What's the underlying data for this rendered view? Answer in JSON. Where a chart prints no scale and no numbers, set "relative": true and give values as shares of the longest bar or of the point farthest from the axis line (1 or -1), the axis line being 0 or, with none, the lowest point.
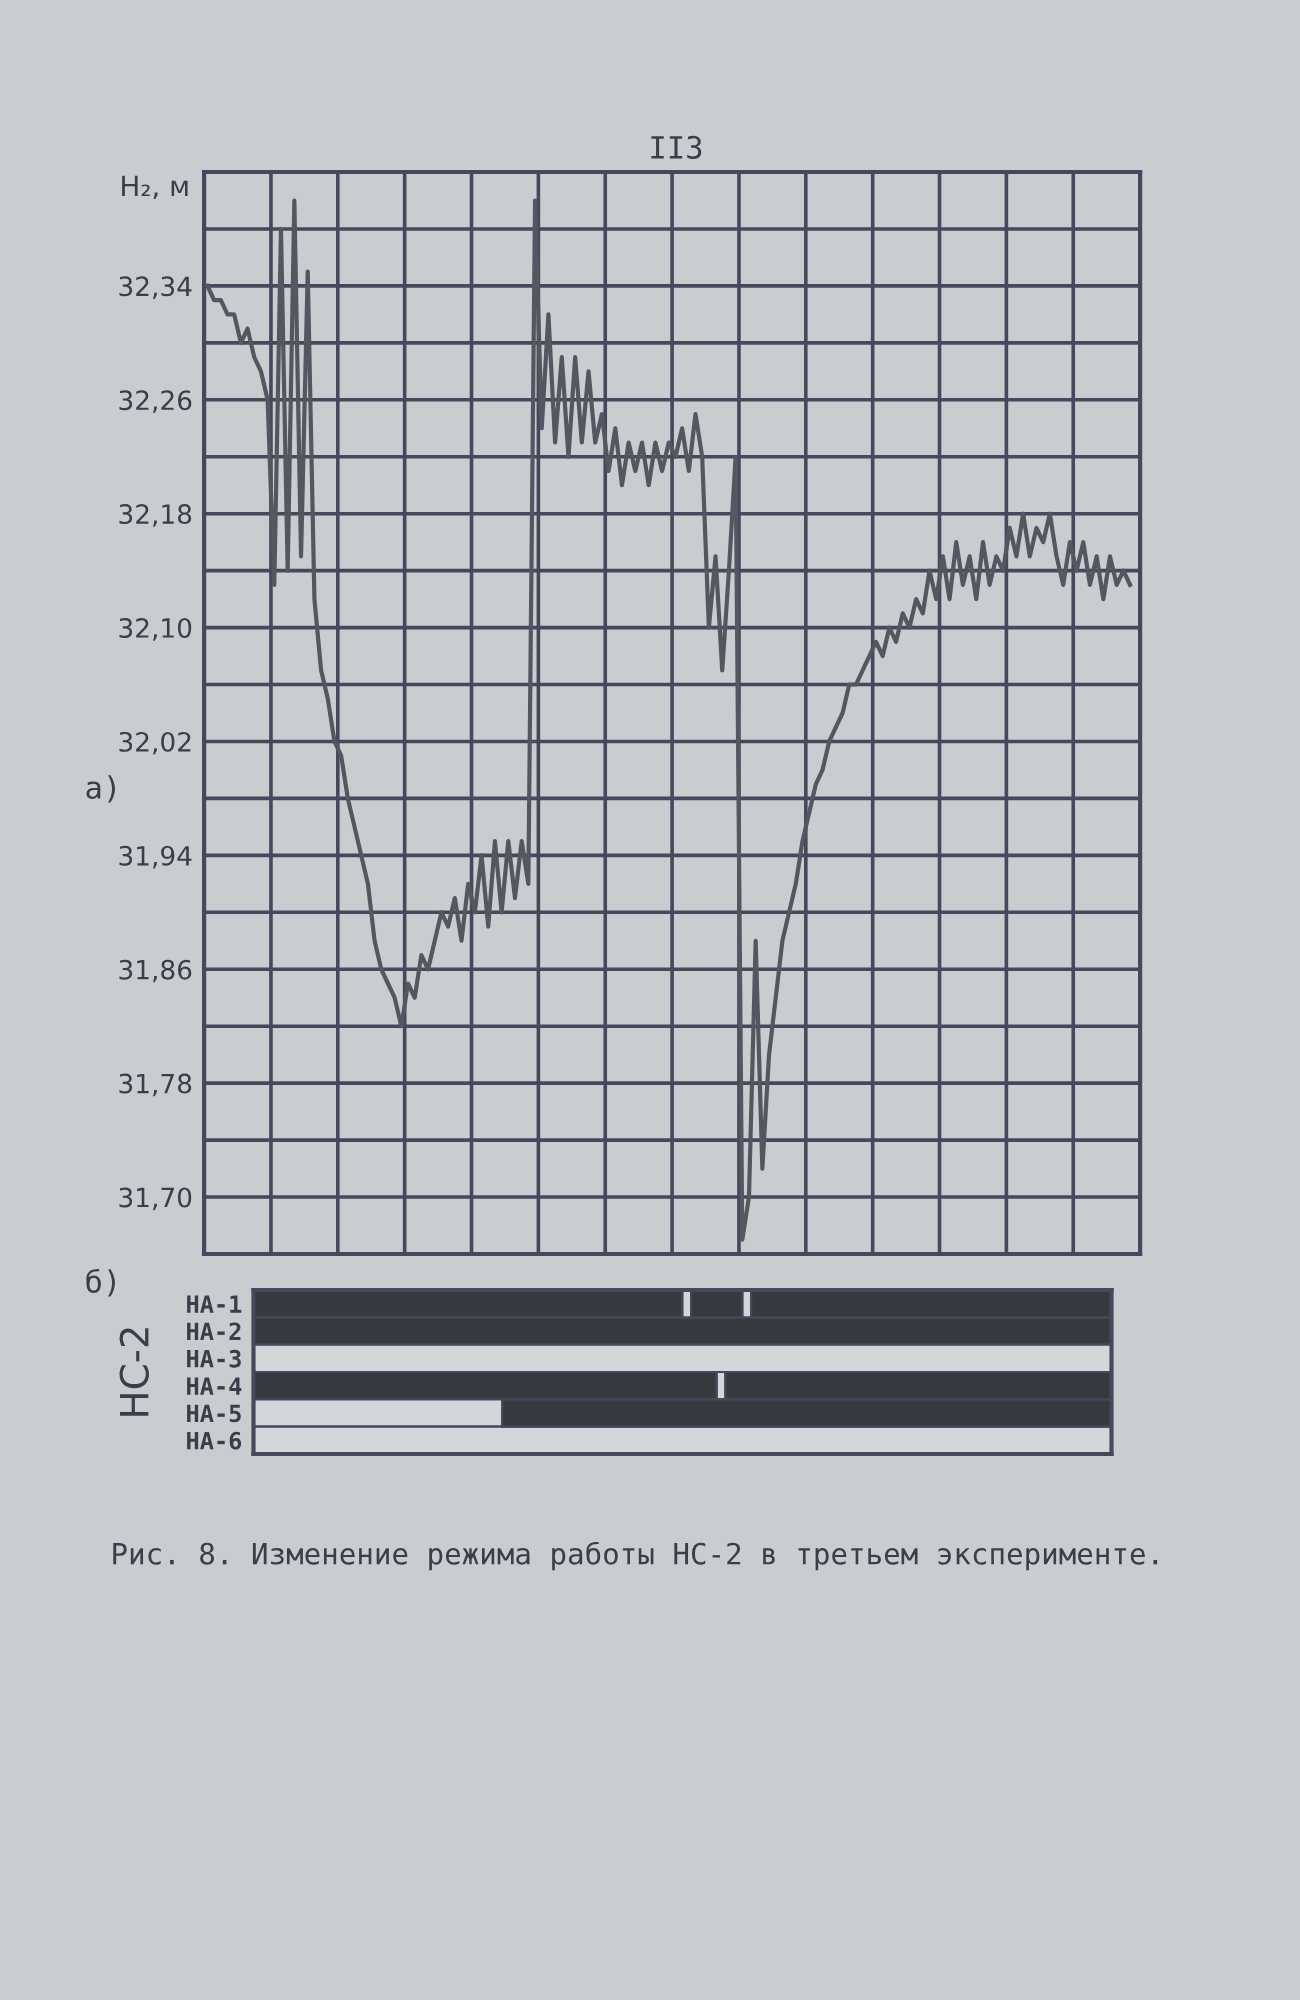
{
  "chart_data": [
    {
      "type": "line",
      "ylabel": "H₂, м",
      "annotations": [
        "II3",
        "а)"
      ],
      "categories": [
        null,
        null,
        null,
        null,
        null,
        null,
        null,
        null,
        null,
        null,
        null,
        null,
        null,
        null,
        null,
        null,
        null,
        null,
        null,
        null,
        null,
        null,
        null,
        null,
        null,
        null,
        null,
        null,
        null,
        null,
        null,
        null,
        null,
        null,
        null,
        null,
        null,
        null,
        null,
        null,
        null,
        null,
        null,
        null,
        null,
        null,
        null,
        null,
        null,
        null,
        null,
        null,
        null,
        null,
        null,
        null,
        null,
        null,
        null,
        null,
        null,
        null,
        null,
        null,
        null,
        null,
        null,
        null,
        null,
        null,
        null,
        null,
        null,
        null,
        null,
        null,
        null,
        null,
        null,
        null,
        null,
        null,
        null,
        null,
        null,
        null,
        null,
        null,
        null,
        null,
        null,
        null,
        null,
        null,
        null,
        null,
        null,
        null,
        null,
        null,
        null,
        null,
        null,
        null,
        null,
        null,
        null,
        null,
        null,
        null,
        null,
        null,
        null,
        null,
        null,
        null,
        null,
        null,
        null,
        null,
        null,
        null,
        null,
        null,
        null,
        null,
        null,
        null,
        null,
        null,
        null,
        null,
        null,
        null,
        null,
        null,
        null,
        null,
        null,
        null
      ],
      "series": [
        {
          "color": "#55565f",
          "values": [
            32.34,
            32.33,
            32.33,
            32.32,
            32.32,
            32.3,
            32.31,
            32.29,
            32.28,
            32.26,
            32.13,
            32.38,
            32.14,
            32.4,
            32.15,
            32.35,
            32.12,
            32.07,
            32.05,
            32.02,
            32.01,
            31.98,
            31.96,
            31.94,
            31.92,
            31.88,
            31.86,
            31.85,
            31.84,
            31.82,
            31.85,
            31.84,
            31.87,
            31.86,
            31.88,
            31.9,
            31.89,
            31.91,
            31.88,
            31.92,
            31.9,
            31.94,
            31.89,
            31.95,
            31.9,
            31.95,
            31.91,
            31.95,
            31.92,
            32.4,
            32.24,
            32.32,
            32.23,
            32.29,
            32.22,
            32.29,
            32.23,
            32.28,
            32.23,
            32.25,
            32.21,
            32.24,
            32.2,
            32.23,
            32.21,
            32.23,
            32.2,
            32.23,
            32.21,
            32.23,
            32.22,
            32.24,
            32.21,
            32.25,
            32.22,
            32.1,
            32.15,
            32.07,
            32.14,
            32.22,
            31.67,
            31.7,
            31.88,
            31.72,
            31.8,
            31.84,
            31.88,
            31.9,
            31.92,
            31.95,
            31.97,
            31.99,
            32.0,
            32.02,
            32.03,
            32.04,
            32.06,
            32.06,
            32.07,
            32.08,
            32.09,
            32.08,
            32.1,
            32.09,
            32.11,
            32.1,
            32.12,
            32.11,
            32.14,
            32.12,
            32.15,
            32.12,
            32.16,
            32.13,
            32.15,
            32.12,
            32.16,
            32.13,
            32.15,
            32.14,
            32.17,
            32.15,
            32.18,
            32.15,
            32.17,
            32.16,
            32.18,
            32.15,
            32.13,
            32.16,
            32.14,
            32.16,
            32.13,
            32.15,
            32.12,
            32.15,
            32.13,
            32.14,
            32.13,
            null
          ]
        }
      ],
      "ylim": [
        31.66,
        32.42
      ],
      "yticks": [
        {
          "value": 31.7,
          "label": "31,70"
        },
        {
          "value": 31.74,
          "label": null
        },
        {
          "value": 31.78,
          "label": "31,78"
        },
        {
          "value": 31.82,
          "label": null
        },
        {
          "value": 31.86,
          "label": "31,86"
        },
        {
          "value": 31.9,
          "label": null
        },
        {
          "value": 31.94,
          "label": "31,94"
        },
        {
          "value": 31.98,
          "label": null
        },
        {
          "value": 32.02,
          "label": "32,02"
        },
        {
          "value": 32.06,
          "label": null
        },
        {
          "value": 32.1,
          "label": "32,10"
        },
        {
          "value": 32.14,
          "label": null
        },
        {
          "value": 32.18,
          "label": "32,18"
        },
        {
          "value": 32.22,
          "label": null
        },
        {
          "value": 32.26,
          "label": "32,26"
        },
        {
          "value": 32.3,
          "label": null
        },
        {
          "value": 32.34,
          "label": "32,34"
        },
        {
          "value": 32.38,
          "label": null
        }
      ],
      "grid": true,
      "tick_labels": "y"
    },
    {
      "type": "bar",
      "orientation": "horizontal",
      "stacked": true,
      "relative": true,
      "ylabel": "НС-2",
      "annotations": [
        "б)",
        "Рис. 8. Изменение режима работы НС-2 в третьем эксперименте."
      ],
      "categories": [
        "НА-1",
        "НА-2",
        "НА-3",
        "НА-4",
        "НА-5",
        "НА-6"
      ],
      "series": [
        {
          "color": "#38383f",
          "values": [
            0.5,
            1,
            null,
            0.54,
            null,
            null
          ]
        },
        {
          "color": "#d4d7d9",
          "values": [
            0.01,
            null,
            1,
            0.01,
            0.29,
            1
          ]
        },
        {
          "color": "#38383f",
          "values": [
            0.06,
            null,
            null,
            0.45,
            0.71,
            null
          ]
        },
        {
          "color": "#d4d7d9",
          "values": [
            0.01,
            null,
            null,
            null,
            null,
            null
          ]
        },
        {
          "color": "#38383f",
          "values": [
            0.42,
            null,
            null,
            null,
            null,
            null
          ]
        }
      ],
      "tick_labels": "y"
    }
  ]
}
